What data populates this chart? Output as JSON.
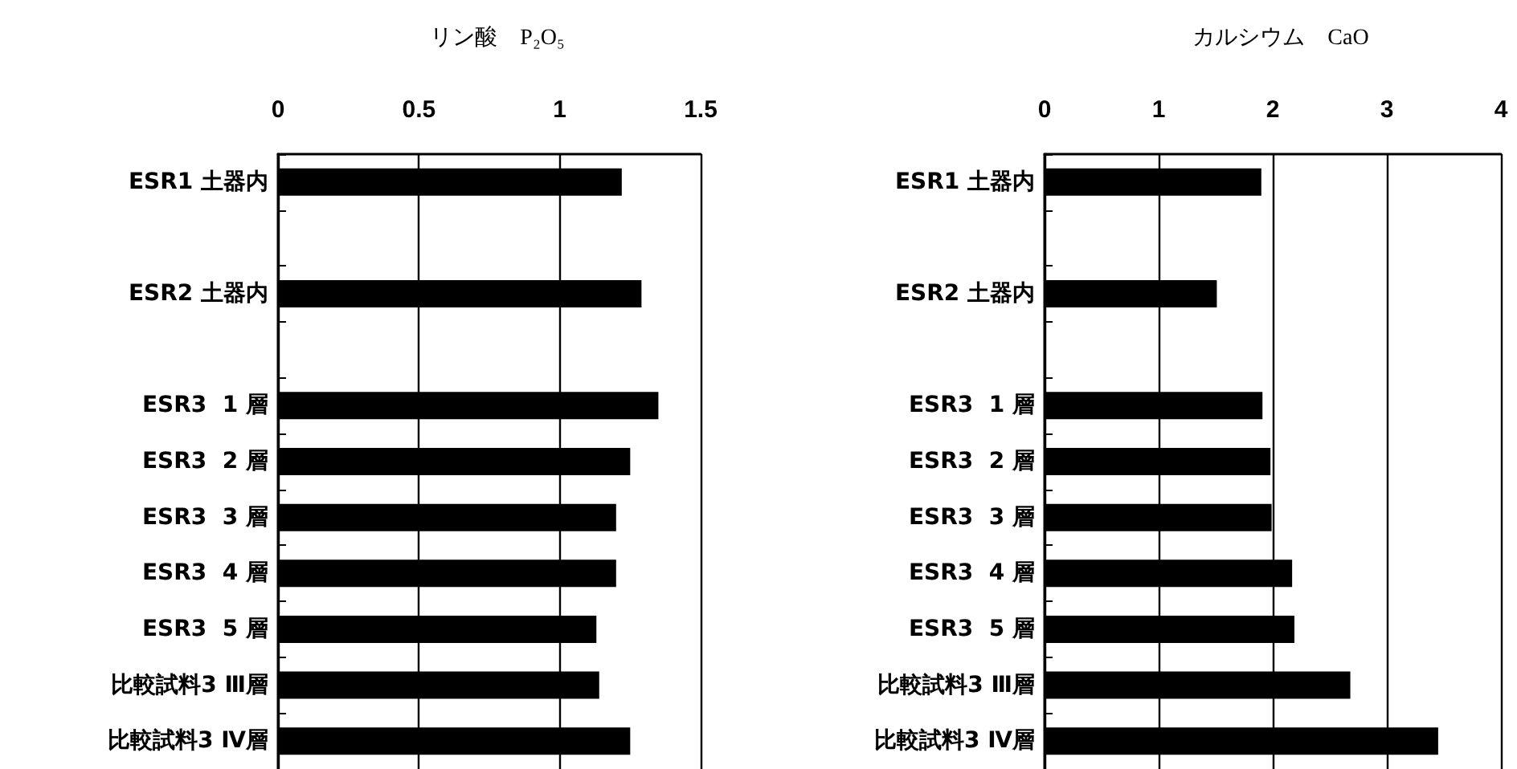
{
  "chart_data": [
    {
      "type": "bar",
      "orientation": "horizontal",
      "title": "リン酸　P₂O₅",
      "categories": [
        "ESR1 土器内",
        null,
        "ESR2 土器内",
        null,
        "ESR3  1 層",
        "ESR3  2 層",
        "ESR3  3 層",
        "ESR3  4 層",
        "ESR3  5 層",
        "比較試料3 Ⅲ層",
        "比較試料3 Ⅳ層"
      ],
      "values": [
        1.22,
        null,
        1.29,
        null,
        1.35,
        1.25,
        1.2,
        1.2,
        1.13,
        1.14,
        1.25
      ],
      "color": "#000000",
      "xlim": [
        0,
        1.5
      ],
      "xticks": [
        0,
        0.5,
        1,
        1.5
      ],
      "grid": "x"
    },
    {
      "type": "bar",
      "orientation": "horizontal",
      "title": "カルシウム　CaO",
      "categories": [
        "ESR1 土器内",
        null,
        "ESR2 土器内",
        null,
        "ESR3  1 層",
        "ESR3  2 層",
        "ESR3  3 層",
        "ESR3  4 層",
        "ESR3  5 層",
        "比較試料3 Ⅲ層",
        "比較試料3 Ⅳ層"
      ],
      "values": [
        1.9,
        null,
        1.51,
        null,
        1.91,
        1.98,
        1.99,
        2.17,
        2.19,
        2.68,
        3.45
      ],
      "color": "#000000",
      "xlim": [
        0,
        4
      ],
      "xticks": [
        0,
        1,
        2,
        3,
        4
      ],
      "grid": "x"
    }
  ]
}
